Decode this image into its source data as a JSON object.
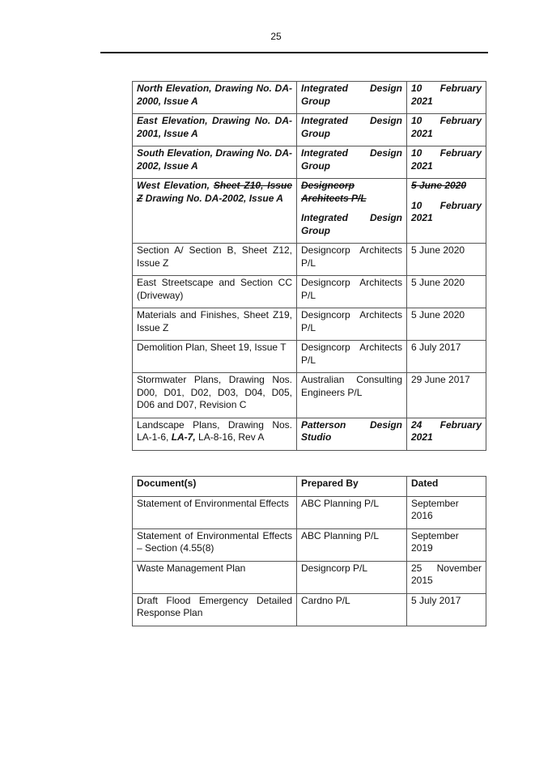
{
  "page_number": "25",
  "table1": {
    "rows": [
      [
        [
          [
            {
              "t": "North Elevation, Drawing No. DA-2000, Issue A",
              "s": "bi"
            }
          ]
        ],
        [
          [
            {
              "t": "Integrated Design Group",
              "s": "bi"
            }
          ]
        ],
        [
          [
            {
              "t": "10 February 2021",
              "s": "bi"
            }
          ]
        ]
      ],
      [
        [
          [
            {
              "t": "East Elevation, Drawing No. DA-2001, Issue A",
              "s": "bi"
            }
          ]
        ],
        [
          [
            {
              "t": "Integrated Design Group",
              "s": "bi"
            }
          ]
        ],
        [
          [
            {
              "t": "10 February 2021",
              "s": "bi"
            }
          ]
        ]
      ],
      [
        [
          [
            {
              "t": "South Elevation, Drawing No. DA-2002, Issue A",
              "s": "bi"
            }
          ]
        ],
        [
          [
            {
              "t": "Integrated Design Group",
              "s": "bi"
            }
          ]
        ],
        [
          [
            {
              "t": "10 February 2021",
              "s": "bi"
            }
          ]
        ]
      ],
      [
        [
          [
            {
              "t": "West Elevation, ",
              "s": "bi"
            },
            {
              "t": "Sheet Z10, Issue Z",
              "s": "s"
            },
            {
              "t": " Drawing No. DA-2002, Issue A",
              "s": "bi"
            }
          ]
        ],
        [
          [
            {
              "t": "Designcorp Architects P/L",
              "s": "s"
            }
          ],
          [
            {
              "t": "Integrated Design Group",
              "s": "bi"
            }
          ]
        ],
        [
          [
            {
              "t": "5 June 2020",
              "s": "s"
            }
          ],
          [
            {
              "t": "10 February 2021",
              "s": "bi"
            }
          ]
        ]
      ],
      [
        [
          [
            {
              "t": "Section A/ Section B, Sheet Z12, Issue Z",
              "s": "n"
            }
          ]
        ],
        [
          [
            {
              "t": "Designcorp Architects P/L",
              "s": "n"
            }
          ]
        ],
        [
          [
            {
              "t": "5 June 2020",
              "s": "n"
            }
          ]
        ]
      ],
      [
        [
          [
            {
              "t": "East Streetscape and Section CC (Driveway)",
              "s": "n"
            }
          ]
        ],
        [
          [
            {
              "t": "Designcorp Architects P/L",
              "s": "n"
            }
          ]
        ],
        [
          [
            {
              "t": "5 June 2020",
              "s": "n"
            }
          ]
        ]
      ],
      [
        [
          [
            {
              "t": "Materials and Finishes, Sheet Z19, Issue Z",
              "s": "n"
            }
          ]
        ],
        [
          [
            {
              "t": "Designcorp Architects P/L",
              "s": "n"
            }
          ]
        ],
        [
          [
            {
              "t": "5 June 2020",
              "s": "n"
            }
          ]
        ]
      ],
      [
        [
          [
            {
              "t": "Demolition Plan, Sheet 19, Issue T",
              "s": "n"
            }
          ]
        ],
        [
          [
            {
              "t": "Designcorp Architects P/L",
              "s": "n"
            }
          ]
        ],
        [
          [
            {
              "t": "6 July 2017",
              "s": "n"
            }
          ]
        ]
      ],
      [
        [
          [
            {
              "t": "Stormwater Plans, Drawing Nos. D00, D01, D02, D03, D04, D05, D06 and D07, Revision C",
              "s": "n"
            }
          ]
        ],
        [
          [
            {
              "t": "Australian Consulting Engineers P/L",
              "s": "n"
            }
          ]
        ],
        [
          [
            {
              "t": "29 June 2017",
              "s": "n"
            }
          ]
        ]
      ],
      [
        [
          [
            {
              "t": "Landscape Plans, Drawing Nos. LA-1-6, ",
              "s": "n"
            },
            {
              "t": "LA-7,",
              "s": "bi"
            },
            {
              "t": " LA-8-16, Rev A",
              "s": "n"
            }
          ]
        ],
        [
          [
            {
              "t": "Patterson Design Studio",
              "s": "bi"
            }
          ]
        ],
        [
          [
            {
              "t": "24 February 2021",
              "s": "bi"
            }
          ]
        ]
      ]
    ]
  },
  "table2": {
    "rows": [
      [
        [
          [
            {
              "t": "Document(s)",
              "s": "b"
            }
          ]
        ],
        [
          [
            {
              "t": "Prepared By",
              "s": "b"
            }
          ]
        ],
        [
          [
            {
              "t": "Dated",
              "s": "b"
            }
          ]
        ]
      ],
      [
        [
          [
            {
              "t": "Statement of Environmental Effects",
              "s": "n"
            }
          ]
        ],
        [
          [
            {
              "t": "ABC Planning P/L",
              "s": "n"
            }
          ]
        ],
        [
          [
            {
              "t": "September 2016",
              "s": "n"
            }
          ]
        ]
      ],
      [
        [
          [
            {
              "t": "Statement of Environmental Effects – Section (4.55(8)",
              "s": "n"
            }
          ]
        ],
        [
          [
            {
              "t": "ABC Planning P/L",
              "s": "n"
            }
          ]
        ],
        [
          [
            {
              "t": "September 2019",
              "s": "n"
            }
          ]
        ]
      ],
      [
        [
          [
            {
              "t": "Waste Management Plan",
              "s": "n"
            }
          ]
        ],
        [
          [
            {
              "t": "Designcorp P/L",
              "s": "n"
            }
          ]
        ],
        [
          [
            {
              "t": "25 November 2015",
              "s": "n"
            }
          ]
        ]
      ],
      [
        [
          [
            {
              "t": "Draft Flood Emergency Detailed Response Plan",
              "s": "n"
            }
          ]
        ],
        [
          [
            {
              "t": "Cardno P/L",
              "s": "n"
            }
          ]
        ],
        [
          [
            {
              "t": "5 July 2017",
              "s": "n"
            }
          ]
        ]
      ]
    ]
  }
}
